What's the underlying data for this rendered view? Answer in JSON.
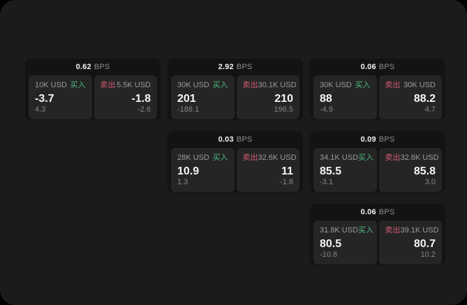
{
  "colors": {
    "buy_accent": "#4cb87f",
    "sell_accent": "#d25a73",
    "panel_bg": "#1b1b1b",
    "card_bg": "#131313",
    "tile_bg": "#252525"
  },
  "cards": [
    {
      "spread": "0.62",
      "unit": "BPS",
      "buy": {
        "amount": "10K USD",
        "action": "买入",
        "price": "-3.7",
        "delta": "4.3"
      },
      "sell": {
        "amount": "5.5K USD",
        "action": "卖出",
        "price": "-1.8",
        "delta": "-2.6"
      }
    },
    {
      "spread": "2.92",
      "unit": "BPS",
      "buy": {
        "amount": "30K USD",
        "action": "买入",
        "price": "201",
        "delta": "-188.1"
      },
      "sell": {
        "amount": "30.1K USD",
        "action": "卖出",
        "price": "210",
        "delta": "196.5"
      }
    },
    {
      "spread": "0.06",
      "unit": "BPS",
      "buy": {
        "amount": "30K USD",
        "action": "买入",
        "price": "88",
        "delta": "-4.9"
      },
      "sell": {
        "amount": "30K USD",
        "action": "卖出",
        "price": "88.2",
        "delta": "4.7"
      }
    },
    {
      "spread": "0.03",
      "unit": "BPS",
      "buy": {
        "amount": "28K USD",
        "action": "买入",
        "price": "10.9",
        "delta": "1.3"
      },
      "sell": {
        "amount": "32.6K USD",
        "action": "卖出",
        "price": "11",
        "delta": "-1.8"
      }
    },
    {
      "spread": "0.09",
      "unit": "BPS",
      "buy": {
        "amount": "34.1K USD",
        "action": "买入",
        "price": "85.5",
        "delta": "-3.1"
      },
      "sell": {
        "amount": "32.8K USD",
        "action": "卖出",
        "price": "85.8",
        "delta": "3.0"
      }
    },
    {
      "spread": "0.06",
      "unit": "BPS",
      "buy": {
        "amount": "31.8K USD",
        "action": "买入",
        "price": "80.5",
        "delta": "-10.8"
      },
      "sell": {
        "amount": "39.1K USD",
        "action": "卖出",
        "price": "80.7",
        "delta": "10.2"
      }
    }
  ]
}
